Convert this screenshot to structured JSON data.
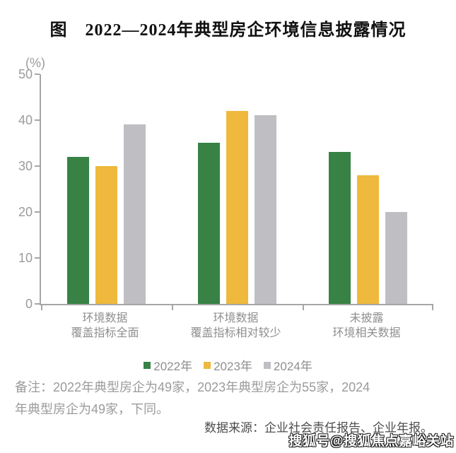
{
  "figure": {
    "title": "图　2022—2024年典型房企环境信息披露情况"
  },
  "chart_data": {
    "type": "bar",
    "title": "2022—2024年典型房企环境信息披露情况",
    "xlabel": "",
    "ylabel": "(%)",
    "ylim": [
      0,
      50
    ],
    "yticks": [
      0,
      10,
      20,
      30,
      40,
      50
    ],
    "grid": false,
    "legend_position": "bottom",
    "categories": [
      "环境数据覆盖指标全面",
      "环境数据覆盖指标相对较少",
      "未披露环境相关数据"
    ],
    "category_label_lines": [
      [
        "环境数据",
        "覆盖指标全面"
      ],
      [
        "环境数据",
        "覆盖指标相对较少"
      ],
      [
        "未披露",
        "环境相关数据"
      ]
    ],
    "series": [
      {
        "name": "2022年",
        "color": "#378244",
        "values": [
          32,
          35,
          33
        ]
      },
      {
        "name": "2023年",
        "color": "#EEB93C",
        "values": [
          30,
          42,
          28
        ]
      },
      {
        "name": "2024年",
        "color": "#BFBFC3",
        "values": [
          39,
          41,
          20
        ]
      }
    ]
  },
  "note": {
    "lines": [
      "备注：2022年典型房企为49家，2023年典型房企为55家，2024",
      "年典型房企为49家，下同。"
    ]
  },
  "source": "数据来源：企业社会责任报告、企业年报。",
  "watermark": "搜狐号@搜狐焦点嘉峪关站",
  "colors": {
    "axis": "#a6a6a6",
    "tick_label": "#9b9b9b",
    "category_label": "#8f8f8f",
    "note_text": "#9b9b9b",
    "source_text": "#4c4c4c",
    "series_2022": "#378244",
    "series_2023": "#EEB93C",
    "series_2024": "#BFBFC3"
  }
}
